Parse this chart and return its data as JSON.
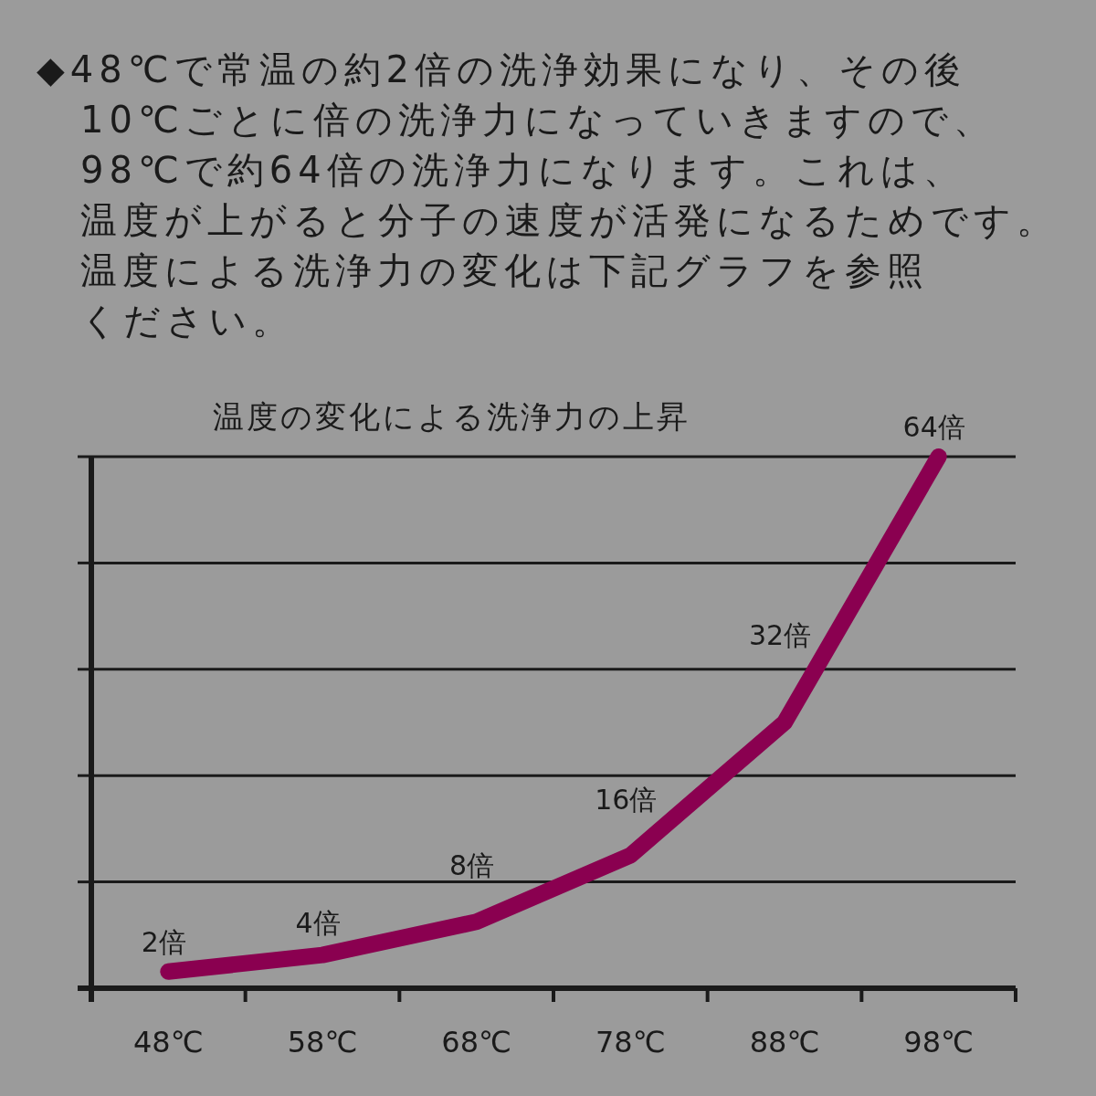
{
  "chart_data": {
    "type": "line",
    "title": "温度の変化による洗浄力の上昇",
    "annotations": [
      "◆48℃で常温の約2倍の洗浄効果になり、その後",
      "10℃ごとに倍の洗浄力になっていきますので、",
      "98℃で約64倍の洗浄力になります。これは、",
      "温度が上がると分子の速度が活発になるためです。",
      "温度による洗浄力の変化は下記グラフを参照",
      "ください。"
    ],
    "categories": [
      "48℃",
      "58℃",
      "68℃",
      "78℃",
      "88℃",
      "98℃"
    ],
    "values": [
      2,
      4,
      8,
      16,
      32,
      64
    ],
    "color": "#8a0050",
    "value_labels": [
      "2倍",
      "4倍",
      "8倍",
      "16倍",
      "32倍",
      "64倍"
    ],
    "ylim": [
      0,
      64
    ],
    "yticks": [
      {
        "value": 0,
        "label": null
      },
      {
        "value": 12.8,
        "label": null
      },
      {
        "value": 25.6,
        "label": null
      },
      {
        "value": 38.4,
        "label": null
      },
      {
        "value": 51.2,
        "label": null
      },
      {
        "value": 64,
        "label": null
      }
    ],
    "grid": "y",
    "tick_labels": "x",
    "line_style": "solid"
  }
}
